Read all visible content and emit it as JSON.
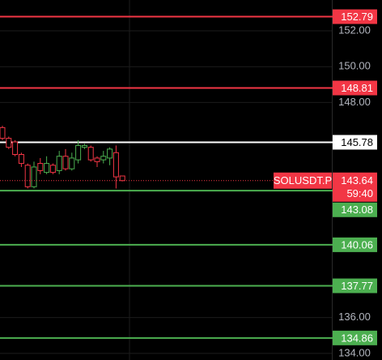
{
  "chart_data": {
    "type": "candlestick",
    "symbol": "SOLUSDT.P",
    "countdown": "59:40",
    "last_price": 143.64,
    "last_color": "#f23645",
    "up_color": "#4caf50",
    "down_color": "#f23645",
    "ylim": [
      133.63,
      153.72
    ],
    "yticks": [
      {
        "value": 152,
        "label": "152.00"
      },
      {
        "value": 150,
        "label": "150.00"
      },
      {
        "value": 148,
        "label": "148.00"
      },
      {
        "value": 136,
        "label": "136.00"
      },
      {
        "value": 134,
        "label": "134.00"
      }
    ],
    "grid": true,
    "levels": [
      {
        "value": 152.79,
        "color": "#f23645"
      },
      {
        "value": 148.81,
        "color": "#f23645"
      },
      {
        "value": 145.78,
        "color": "#ffffff"
      },
      {
        "value": 143.08,
        "color": "#4caf50"
      },
      {
        "value": 140.06,
        "color": "#4caf50"
      },
      {
        "value": 137.77,
        "color": "#4caf50"
      },
      {
        "value": 134.86,
        "color": "#4caf50"
      }
    ],
    "candles": [
      {
        "open": 146.6,
        "high": 146.7,
        "low": 145.9,
        "close": 146.0
      },
      {
        "open": 146.0,
        "high": 146.1,
        "low": 145.4,
        "close": 145.5
      },
      {
        "open": 145.8,
        "high": 145.9,
        "low": 145.0,
        "close": 145.1
      },
      {
        "open": 145.1,
        "high": 145.2,
        "low": 144.4,
        "close": 144.6
      },
      {
        "open": 144.5,
        "high": 144.6,
        "low": 143.2,
        "close": 143.3
      },
      {
        "open": 143.3,
        "high": 144.7,
        "low": 143.2,
        "close": 144.4
      },
      {
        "open": 144.6,
        "high": 144.9,
        "low": 144.0,
        "close": 144.2
      },
      {
        "open": 144.1,
        "high": 145.0,
        "low": 144.0,
        "close": 144.6
      },
      {
        "open": 144.5,
        "high": 144.6,
        "low": 144.0,
        "close": 144.1
      },
      {
        "open": 144.2,
        "high": 145.3,
        "low": 144.0,
        "close": 145.0
      },
      {
        "open": 145.0,
        "high": 145.4,
        "low": 144.2,
        "close": 144.3
      },
      {
        "open": 144.3,
        "high": 145.2,
        "low": 144.2,
        "close": 144.9
      },
      {
        "open": 144.8,
        "high": 145.9,
        "low": 144.6,
        "close": 145.6
      },
      {
        "open": 145.5,
        "high": 145.7,
        "low": 145.4,
        "close": 145.6
      },
      {
        "open": 145.5,
        "high": 145.6,
        "low": 144.7,
        "close": 144.8
      },
      {
        "open": 144.9,
        "high": 145.0,
        "low": 144.4,
        "close": 144.7
      },
      {
        "open": 144.8,
        "high": 145.3,
        "low": 144.6,
        "close": 145.0
      },
      {
        "open": 144.9,
        "high": 145.5,
        "low": 144.5,
        "close": 145.4
      },
      {
        "open": 145.2,
        "high": 145.6,
        "low": 143.2,
        "close": 143.85
      },
      {
        "open": 143.9,
        "high": 143.9,
        "low": 143.6,
        "close": 143.64
      }
    ]
  }
}
